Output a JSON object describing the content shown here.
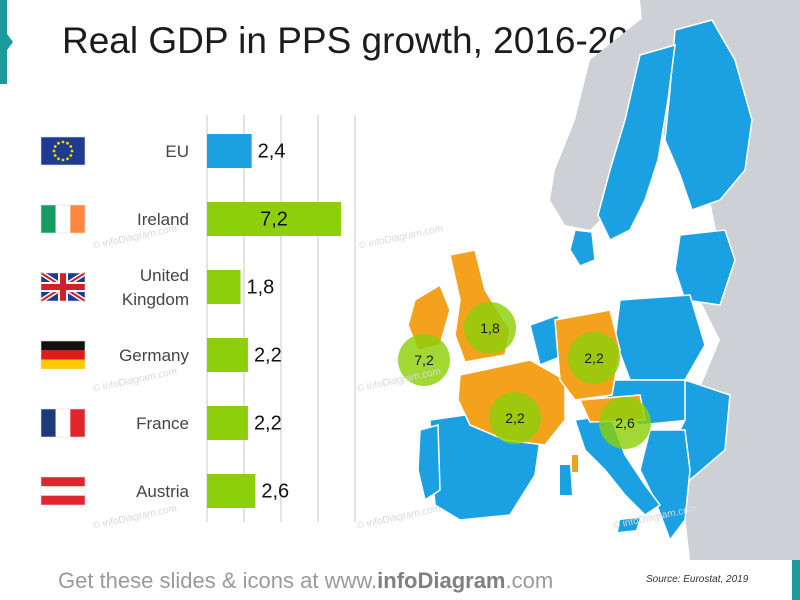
{
  "slide": {
    "title": "Real GDP in PPS growth, 2016-2017",
    "footer_pre": "Get these slides & icons at www.",
    "footer_brand": "infoDiagram",
    "footer_post": ".com",
    "source": "Source: Eurostat, 2019",
    "watermark": "© infoDiagram.com"
  },
  "colors": {
    "accent": "#1a9a9a",
    "eu_bar": "#1ba1e2",
    "country_bar": "#8ccf0a",
    "map_highlight": "#f4a11d",
    "map_eu": "#1ba1e2",
    "map_other": "#cdd1d6",
    "bubble": "#8ccf0a"
  },
  "chart_data": {
    "type": "bar",
    "orientation": "horizontal",
    "title": "Real GDP in PPS growth, 2016-2017",
    "categories": [
      "EU",
      "Ireland",
      "United Kingdom",
      "Germany",
      "France",
      "Austria"
    ],
    "values": [
      2.4,
      7.2,
      1.8,
      2.2,
      2.2,
      2.6
    ],
    "value_labels": [
      "2,4",
      "7,2",
      "1,8",
      "2,2",
      "2,2",
      "2,6"
    ],
    "category_label_lines": [
      [
        "EU"
      ],
      [
        "Ireland"
      ],
      [
        "United",
        "Kingdom"
      ],
      [
        "Germany"
      ],
      [
        "France"
      ],
      [
        "Austria"
      ]
    ],
    "flag_icons": [
      "eu-flag",
      "ireland-flag",
      "uk-flag",
      "germany-flag",
      "france-flag",
      "austria-flag"
    ],
    "xlim": [
      0,
      7.2
    ],
    "grid": true,
    "gridline_count": 5
  },
  "map": {
    "bubbles": [
      {
        "country": "Ireland",
        "label": "7,2"
      },
      {
        "country": "United Kingdom",
        "label": "1,8"
      },
      {
        "country": "Germany",
        "label": "2,2"
      },
      {
        "country": "France",
        "label": "2,2"
      },
      {
        "country": "Austria",
        "label": "2,6"
      }
    ]
  }
}
